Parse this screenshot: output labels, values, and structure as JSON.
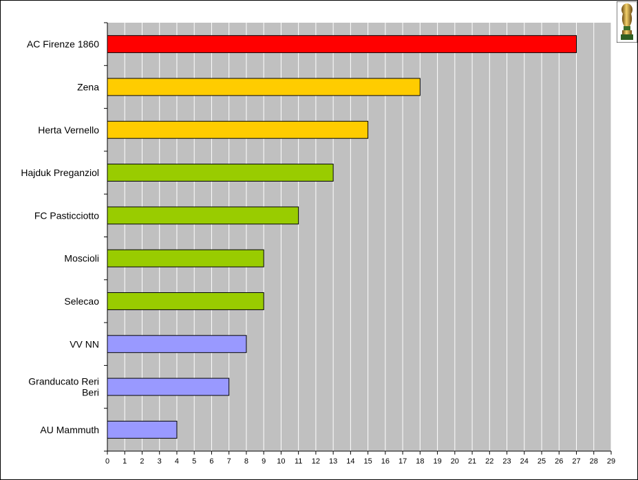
{
  "chart_data": {
    "type": "bar",
    "orientation": "horizontal",
    "categories": [
      "AC Firenze 1860",
      "Zena",
      "Herta Vernello",
      "Hajduk Preganziol",
      "FC Pasticciotto",
      "Moscioli",
      "Selecao",
      "VV NN",
      "Granducato Reri Beri",
      "AU Mammuth"
    ],
    "values": [
      27,
      18,
      15,
      13,
      11,
      9,
      9,
      8,
      7,
      4
    ],
    "bar_colors": [
      "#ff0000",
      "#ffcc00",
      "#ffcc00",
      "#99cc00",
      "#99cc00",
      "#99cc00",
      "#99cc00",
      "#9999ff",
      "#9999ff",
      "#9999ff"
    ],
    "xlim": [
      0,
      29
    ],
    "x_ticks": [
      0,
      1,
      2,
      3,
      4,
      5,
      6,
      7,
      8,
      9,
      10,
      11,
      12,
      13,
      14,
      15,
      16,
      17,
      18,
      19,
      20,
      21,
      22,
      23,
      24,
      25,
      26,
      27,
      28,
      29
    ],
    "grid": true,
    "plot_background": "#c0c0c0",
    "grid_color": "#ffffff",
    "title": "",
    "xlabel": "",
    "ylabel": ""
  },
  "decor": {
    "logo_icon": "trophy-icon"
  }
}
